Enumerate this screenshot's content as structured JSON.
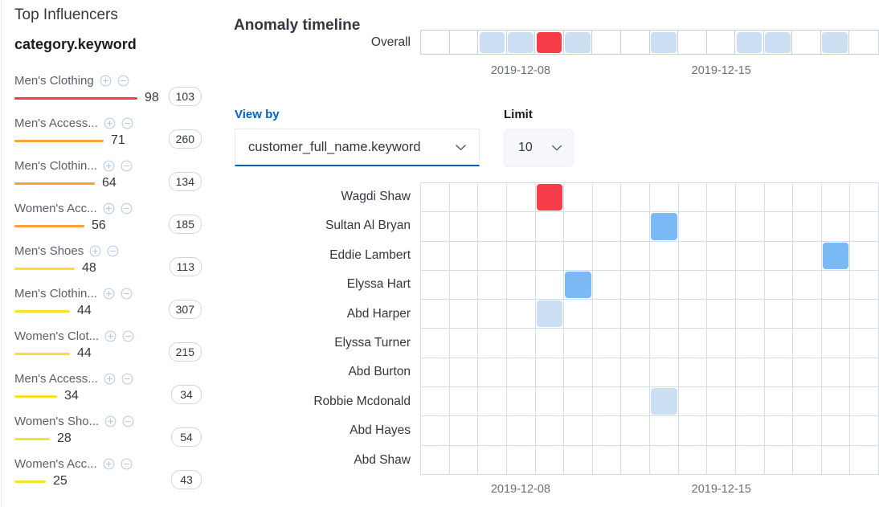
{
  "severity_colors": {
    "critical": "#f73c4a",
    "major": "#f9a23c",
    "minor": "#f8e12c",
    "warning": "#7ab9f4",
    "low": "#cde0f3",
    "none": "transparent"
  },
  "icons": {
    "add_filter": "plus-in-circle-icon",
    "remove_filter": "minus-in-circle-icon",
    "dropdown": "chevron-down-icon"
  },
  "top_influencers": {
    "title": "Top Influencers",
    "field_name": "category.keyword",
    "items": [
      {
        "label": "Men's Clothing",
        "value": 98,
        "badge": "103",
        "severity": "critical"
      },
      {
        "label": "Men's Access...",
        "value": 71,
        "badge": "260",
        "severity": "major"
      },
      {
        "label": "Men's Clothin...",
        "value": 64,
        "badge": "134",
        "severity": "major"
      },
      {
        "label": "Women's Acc...",
        "value": 56,
        "badge": "185",
        "severity": "major"
      },
      {
        "label": "Men's Shoes",
        "value": 48,
        "badge": "113",
        "severity": "minor"
      },
      {
        "label": "Men's Clothin...",
        "value": 44,
        "badge": "307",
        "severity": "minor"
      },
      {
        "label": "Women's Clot...",
        "value": 44,
        "badge": "215",
        "severity": "minor"
      },
      {
        "label": "Men's Access...",
        "value": 34,
        "badge": "34",
        "severity": "minor"
      },
      {
        "label": "Women's Sho...",
        "value": 28,
        "badge": "54",
        "severity": "minor"
      },
      {
        "label": "Women's Acc...",
        "value": 25,
        "badge": "43",
        "severity": "minor"
      }
    ]
  },
  "anomaly_timeline": {
    "title": "Anomaly timeline",
    "overall_label": "Overall",
    "columns": 16,
    "overall_cells": [
      "none",
      "none",
      "low",
      "low",
      "critical",
      "low",
      "none",
      "none",
      "low",
      "none",
      "none",
      "low",
      "low",
      "none",
      "low",
      "none"
    ],
    "axis_ticks": [
      {
        "label": "2019-12-08",
        "col": 3
      },
      {
        "label": "2019-12-15",
        "col": 10
      }
    ],
    "view_by": {
      "label": "View by",
      "value": "customer_full_name.keyword"
    },
    "limit": {
      "label": "Limit",
      "value": "10"
    },
    "rows": [
      {
        "name": "Wagdi Shaw",
        "marks": [
          {
            "col": 4,
            "severity": "critical"
          }
        ]
      },
      {
        "name": "Sultan Al Bryan",
        "marks": [
          {
            "col": 8,
            "severity": "warning"
          }
        ]
      },
      {
        "name": "Eddie Lambert",
        "marks": [
          {
            "col": 14,
            "severity": "warning"
          }
        ]
      },
      {
        "name": "Elyssa Hart",
        "marks": [
          {
            "col": 5,
            "severity": "warning"
          }
        ]
      },
      {
        "name": "Abd Harper",
        "marks": [
          {
            "col": 4,
            "severity": "low"
          }
        ]
      },
      {
        "name": "Elyssa Turner",
        "marks": []
      },
      {
        "name": "Abd Burton",
        "marks": []
      },
      {
        "name": "Robbie Mcdonald",
        "marks": [
          {
            "col": 8,
            "severity": "low"
          }
        ]
      },
      {
        "name": "Abd Hayes",
        "marks": []
      },
      {
        "name": "Abd Shaw",
        "marks": []
      }
    ]
  }
}
